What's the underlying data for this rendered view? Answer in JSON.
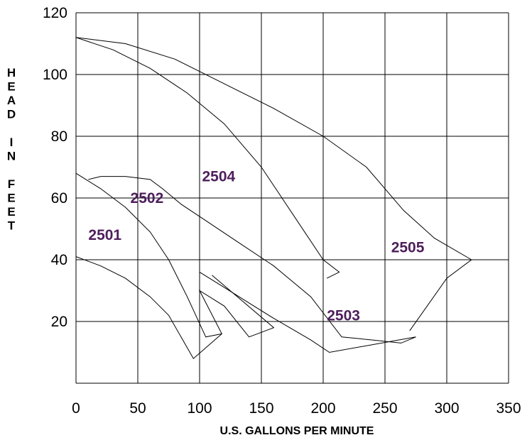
{
  "chart_data": {
    "type": "line",
    "xlabel": "U.S. GALLONS PER MINUTE",
    "ylabel": "HEAD IN FEET",
    "xlim": [
      0,
      350
    ],
    "ylim": [
      0,
      120
    ],
    "x_ticks": [
      "0",
      "50",
      "100",
      "150",
      "200",
      "250",
      "300",
      "350"
    ],
    "y_ticks": [
      "20",
      "40",
      "60",
      "80",
      "100",
      "120"
    ],
    "grid": true,
    "series": [
      {
        "name": "2501",
        "label_at": [
          10,
          48
        ],
        "points": [
          [
            0,
            41
          ],
          [
            20,
            38
          ],
          [
            40,
            34
          ],
          [
            60,
            28
          ],
          [
            75,
            22
          ],
          [
            85,
            15
          ],
          [
            95,
            8
          ],
          [
            118,
            16
          ]
        ]
      },
      {
        "name": "2502",
        "label_at": [
          44,
          60
        ],
        "points": [
          [
            0,
            68
          ],
          [
            20,
            63
          ],
          [
            40,
            57
          ],
          [
            60,
            49
          ],
          [
            75,
            40
          ],
          [
            90,
            28
          ],
          [
            105,
            15
          ],
          [
            118,
            16
          ],
          [
            100,
            30
          ],
          [
            120,
            25
          ],
          [
            140,
            15
          ],
          [
            160,
            18
          ],
          [
            110,
            35
          ]
        ]
      },
      {
        "name": "2503",
        "label_at": [
          203,
          22
        ],
        "points": [
          [
            10,
            66
          ],
          [
            20,
            67
          ],
          [
            40,
            67
          ],
          [
            60,
            66
          ],
          [
            70,
            63
          ],
          [
            85,
            58
          ],
          [
            100,
            54
          ],
          [
            130,
            46
          ],
          [
            160,
            38
          ],
          [
            190,
            28
          ],
          [
            215,
            15
          ],
          [
            240,
            14
          ],
          [
            263,
            13
          ],
          [
            275,
            15
          ],
          [
            205,
            10
          ],
          [
            190,
            14
          ],
          [
            160,
            21
          ],
          [
            140,
            26
          ],
          [
            120,
            31
          ],
          [
            100,
            36
          ]
        ]
      },
      {
        "name": "2504",
        "label_at": [
          102,
          67
        ],
        "points": [
          [
            0,
            112
          ],
          [
            30,
            108
          ],
          [
            60,
            102
          ],
          [
            90,
            94
          ],
          [
            120,
            84
          ],
          [
            150,
            70
          ],
          [
            180,
            52
          ],
          [
            200,
            40
          ],
          [
            213,
            36
          ],
          [
            203,
            34
          ]
        ]
      },
      {
        "name": "2505",
        "label_at": [
          255,
          44
        ],
        "points": [
          [
            0,
            112
          ],
          [
            40,
            110
          ],
          [
            80,
            105
          ],
          [
            120,
            97
          ],
          [
            160,
            89
          ],
          [
            200,
            80
          ],
          [
            235,
            70
          ],
          [
            265,
            56
          ],
          [
            290,
            47
          ],
          [
            320,
            40
          ],
          [
            300,
            34
          ],
          [
            270,
            17
          ]
        ]
      }
    ]
  }
}
